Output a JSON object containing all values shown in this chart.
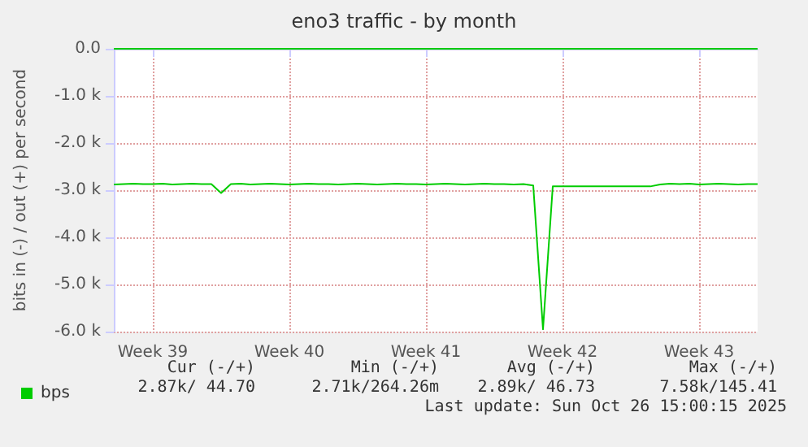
{
  "chart_data": {
    "type": "line",
    "title": "eno3 traffic - by month",
    "ylabel": "bits in (-) / out (+) per second",
    "categories": [
      null,
      null,
      null,
      null,
      "Week 39",
      null,
      null,
      null,
      null,
      null,
      null,
      null,
      null,
      null,
      null,
      null,
      null,
      null,
      "Week 40",
      null,
      null,
      null,
      null,
      null,
      null,
      null,
      null,
      null,
      null,
      null,
      null,
      null,
      "Week 41",
      null,
      null,
      null,
      null,
      null,
      null,
      null,
      null,
      null,
      null,
      null,
      null,
      null,
      "Week 42",
      null,
      null,
      null,
      null,
      null,
      null,
      null,
      null,
      null,
      null,
      null,
      null,
      null,
      "Week 43",
      null,
      null,
      null,
      null,
      null,
      null
    ],
    "ylim": [
      -6000,
      0
    ],
    "yticks": [
      {
        "value": 0,
        "label": "0.0"
      },
      {
        "value": -1000,
        "label": "-1.0 k"
      },
      {
        "value": -2000,
        "label": "-2.0 k"
      },
      {
        "value": -3000,
        "label": "-3.0 k"
      },
      {
        "value": -4000,
        "label": "-4.0 k"
      },
      {
        "value": -5000,
        "label": "-5.0 k"
      },
      {
        "value": -6000,
        "label": "-6.0 k"
      }
    ],
    "series": [
      {
        "name": "bps",
        "color": "#00cc00",
        "values": [
          -2880,
          -2870,
          -2860,
          -2870,
          -2870,
          -2860,
          -2880,
          -2870,
          -2860,
          -2870,
          -2870,
          -3060,
          -2870,
          -2860,
          -2880,
          -2870,
          -2860,
          -2870,
          -2880,
          -2870,
          -2860,
          -2870,
          -2870,
          -2880,
          -2870,
          -2860,
          -2870,
          -2880,
          -2870,
          -2860,
          -2870,
          -2870,
          -2880,
          -2870,
          -2860,
          -2870,
          -2880,
          -2870,
          -2860,
          -2870,
          -2870,
          -2880,
          -2870,
          -2900,
          -5950,
          -2920,
          -2920,
          -2920,
          -2920,
          -2920,
          -2920,
          -2920,
          -2920,
          -2920,
          -2920,
          -2920,
          -2880,
          -2860,
          -2870,
          -2860,
          -2880,
          -2870,
          -2860,
          -2870,
          -2880,
          -2870,
          -2870
        ]
      },
      {
        "color": "#00cc00",
        "values": [
          0,
          0,
          0,
          0,
          0,
          0,
          0,
          0,
          0,
          0,
          0,
          0,
          0,
          0,
          0,
          0,
          0,
          0,
          0,
          0,
          0,
          0,
          0,
          0,
          0,
          0,
          0,
          0,
          0,
          0,
          0,
          0,
          0,
          0,
          0,
          0,
          0,
          0,
          0,
          0,
          0,
          0,
          0,
          0,
          0,
          0,
          0,
          0,
          0,
          0,
          0,
          0,
          0,
          0,
          0,
          0,
          0,
          0,
          0,
          0,
          0,
          0,
          0,
          0,
          0,
          0,
          0
        ]
      }
    ],
    "grid": true,
    "legend": "bottom left",
    "marker": "none",
    "line_style": "solid",
    "annotations": [
      "Cur (-/+)",
      "Min (-/+)",
      "Avg (-/+)",
      "Max (-/+)",
      "2.87k/ 44.70",
      "2.71k/264.26m",
      "2.89k/ 46.73",
      "7.58k/145.41",
      "Last update: Sun Oct 26 15:00:15 2025"
    ]
  }
}
